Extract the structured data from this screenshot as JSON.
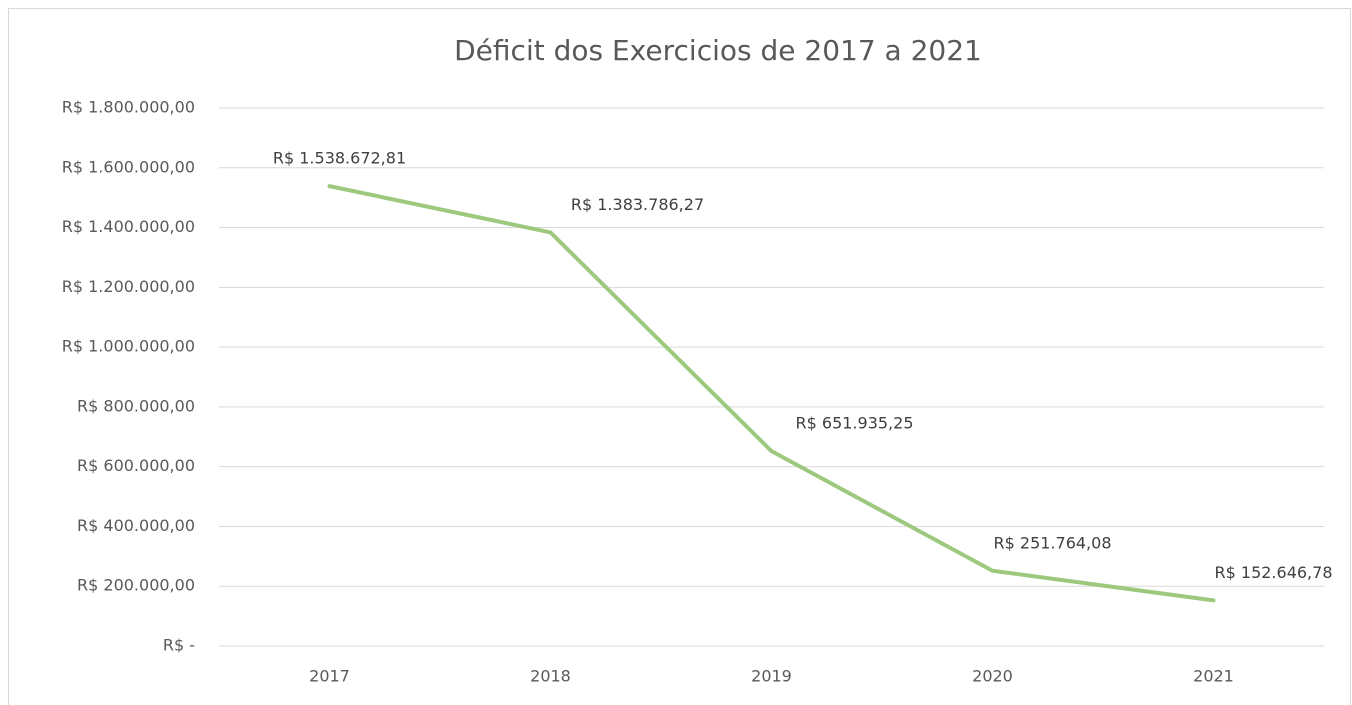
{
  "chart_data": {
    "type": "line",
    "title": "Déficit dos Exercicios de 2017 a 2021",
    "categories": [
      "2017",
      "2018",
      "2019",
      "2020",
      "2021"
    ],
    "values": [
      1538672.81,
      1383786.27,
      651935.25,
      251764.08,
      152646.78
    ],
    "value_labels": [
      "R$ 1.538.672,81",
      "R$ 1.383.786,27",
      "R$ 651.935,25",
      "R$ 251.764,08",
      "R$ 152.646,78"
    ],
    "color": "#9dc97f",
    "ylim": [
      0,
      1800000
    ],
    "yticks": [
      {
        "value": 0,
        "label": "R$ -"
      },
      {
        "value": 200000,
        "label": "R$ 200.000,00"
      },
      {
        "value": 400000,
        "label": "R$ 400.000,00"
      },
      {
        "value": 600000,
        "label": "R$ 600.000,00"
      },
      {
        "value": 800000,
        "label": "R$ 800.000,00"
      },
      {
        "value": 1000000,
        "label": "R$ 1.000.000,00"
      },
      {
        "value": 1200000,
        "label": "R$ 1.200.000,00"
      },
      {
        "value": 1400000,
        "label": "R$ 1.400.000,00"
      },
      {
        "value": 1600000,
        "label": "R$ 1.600.000,00"
      },
      {
        "value": 1800000,
        "label": "R$ 1.800.000,00"
      }
    ],
    "grid": true
  }
}
